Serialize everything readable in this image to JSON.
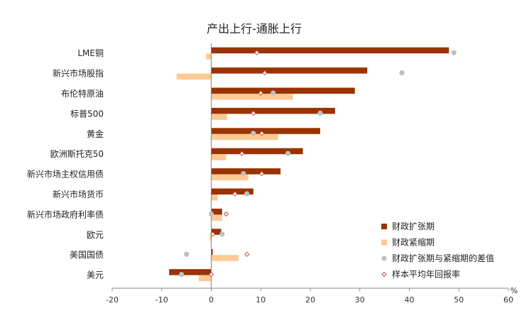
{
  "chart_data": {
    "type": "bar",
    "orientation": "horizontal",
    "title": "产出上行-通胀上行",
    "xlabel": "",
    "ylabel": "",
    "x_unit": "%",
    "xlim": [
      -20,
      60
    ],
    "xticks": [
      -20,
      -10,
      0,
      10,
      20,
      30,
      40,
      50,
      60
    ],
    "grid": false,
    "legend_position": "right",
    "categories": [
      "LME铜",
      "新兴市场股指",
      "布伦特原油",
      "标普500",
      "黄金",
      "欧洲斯托克50",
      "新兴市场主权信用债",
      "新兴市场货币",
      "新兴市场政府利率债",
      "欧元",
      "美国国债",
      "美元"
    ],
    "series": [
      {
        "name": "财政扩张期",
        "kind": "bar",
        "color": "#993300",
        "values": [
          48,
          31.5,
          29,
          25,
          22,
          18.5,
          14,
          8.5,
          2.2,
          2,
          0.3,
          -8.5
        ]
      },
      {
        "name": "财政紧缩期",
        "kind": "bar",
        "color": "#FFC993",
        "values": [
          -1,
          -7,
          16.5,
          3.2,
          13.5,
          3,
          7.5,
          1.3,
          2.2,
          -0.3,
          5.5,
          -2.5
        ]
      },
      {
        "name": "财政扩张期与紧缩期的差值",
        "kind": "dot",
        "color": "#BFBFBF",
        "values": [
          49,
          38.5,
          12.5,
          22,
          8.5,
          15.5,
          6.5,
          7.2,
          0,
          2.2,
          -5,
          -6
        ]
      },
      {
        "name": "样本平均年回报率",
        "kind": "diamond",
        "color": "#C0504D",
        "values": [
          9.2,
          10.8,
          10,
          8.5,
          10.2,
          6.2,
          10.2,
          4.8,
          3,
          0.3,
          7.2,
          0
        ]
      }
    ]
  }
}
